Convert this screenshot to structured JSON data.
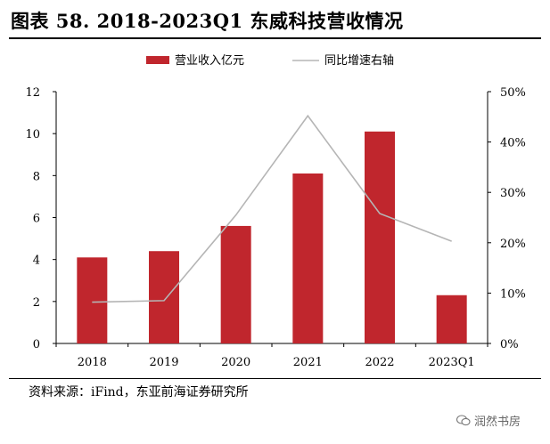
{
  "header": {
    "title": "图表 58. 2018-2023Q1 东威科技营收情况"
  },
  "footer": {
    "source": "资料来源：iFind，东亚前海证券研究所"
  },
  "watermark": {
    "text": "润然书房"
  },
  "chart_data": {
    "type": "bar",
    "categories": [
      "2018",
      "2019",
      "2020",
      "2021",
      "2022",
      "2023Q1"
    ],
    "series": [
      {
        "name": "营业收入亿元",
        "type": "bar",
        "axis": "left",
        "color": "#c0262d",
        "values": [
          4.1,
          4.4,
          5.6,
          8.1,
          10.1,
          2.3
        ]
      },
      {
        "name": "同比增速右轴",
        "type": "line",
        "axis": "right",
        "color": "#b5b5b5",
        "values": [
          8.2,
          8.5,
          25.5,
          45.2,
          25.8,
          20.3
        ]
      }
    ],
    "ylim": [
      0,
      12
    ],
    "y_ticks": [
      "0",
      "2",
      "4",
      "6",
      "8",
      "10",
      "12"
    ],
    "y2lim": [
      0,
      50
    ],
    "y2_ticks": [
      "0%",
      "10%",
      "20%",
      "30%",
      "40%",
      "50%"
    ],
    "grid": false,
    "legend": "top-center"
  }
}
